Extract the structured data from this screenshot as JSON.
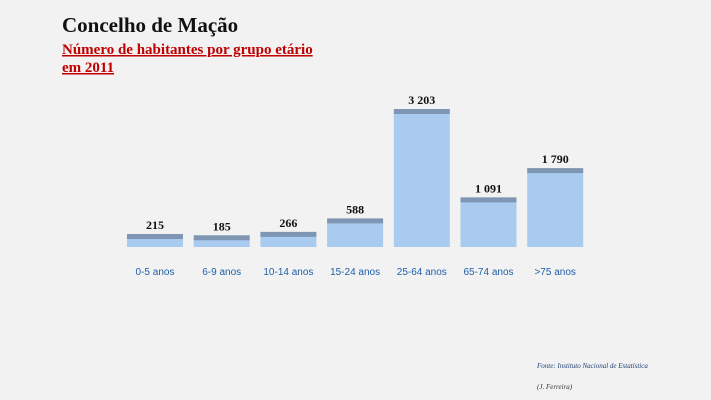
{
  "chart_data": {
    "type": "bar",
    "title": "Concelho de Mação",
    "subtitle": [
      "Número de habitantes por grupo etário",
      "em 2011"
    ],
    "categories": [
      "0-5 anos",
      "6-9 anos",
      "10-14 anos",
      "15-24 anos",
      "25-64 anos",
      "65-74 anos",
      ">75 anos"
    ],
    "values": [
      215,
      185,
      266,
      588,
      3203,
      1091,
      1790
    ],
    "value_labels": [
      "215",
      "185",
      "266",
      "588",
      "3 203",
      "1 091",
      "1 790"
    ],
    "color": "#a9cbef",
    "cap_color": "#7f96b2",
    "source": "Fonte: Instituto Nacional de Estatística",
    "author": "(J. Ferreira)"
  }
}
